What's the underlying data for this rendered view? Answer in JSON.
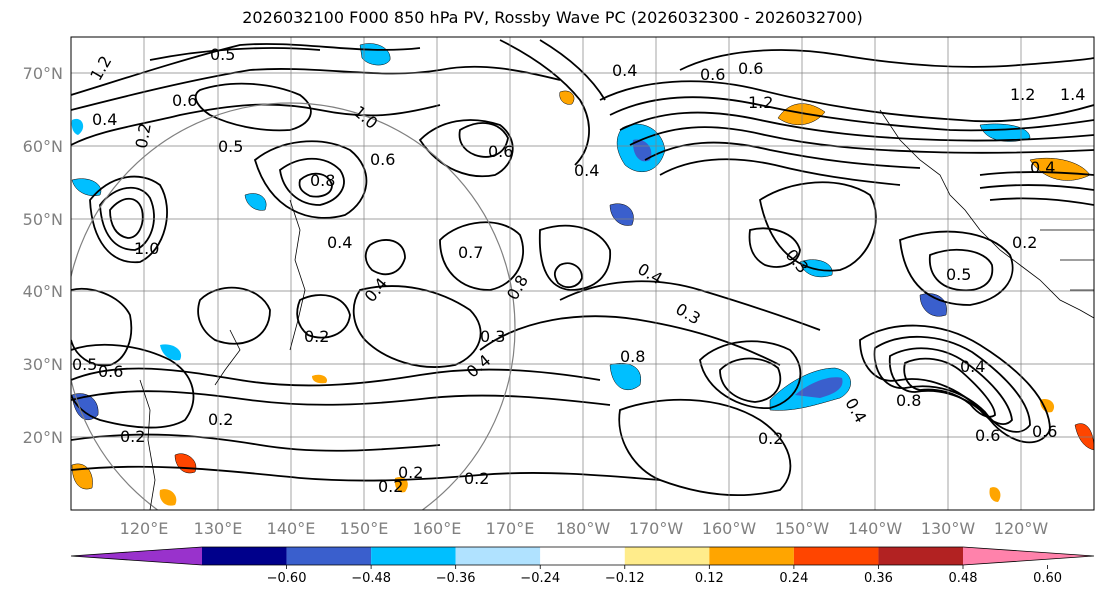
{
  "title": "2026032100 F000 850 hPa PV, Rossby Wave PC (2026032300 - 2026032700)",
  "lat_labels": [
    "70°N",
    "60°N",
    "50°N",
    "40°N",
    "30°N",
    "20°N"
  ],
  "lon_labels": [
    "120°E",
    "130°E",
    "140°E",
    "150°E",
    "160°E",
    "170°E",
    "180°W",
    "170°W",
    "160°W",
    "150°W",
    "140°W",
    "130°W",
    "120°W"
  ],
  "colorbar": {
    "ticks": [
      "−0.60",
      "−0.48",
      "−0.36",
      "−0.24",
      "−0.12",
      "0.12",
      "0.24",
      "0.36",
      "0.48",
      "0.60"
    ],
    "colors": [
      "#9932CC",
      "#00008B",
      "#3A5FCD",
      "#00BFFF",
      "#B0E2FF",
      "#FFFFFF",
      "#FFEC8B",
      "#FFA500",
      "#FF4500",
      "#B22222",
      "#FF82AB"
    ]
  },
  "contour_labels": {
    "c1": "0.5",
    "c2": "1.2",
    "c3": "0.4",
    "c4": "0.6",
    "c5": "0.6",
    "c6": "1.2",
    "c7": "1.2",
    "c8": "1.4",
    "c9": "0.6",
    "c10": "0.4",
    "c11": "1.0",
    "c12": "0.5",
    "c13": "0.6",
    "c14": "0.6",
    "c15": "0.4",
    "c16": "0.2",
    "c17": "0.8",
    "c18": "0.4",
    "c19": "0.7",
    "c20": "0.3",
    "c21": "0.8",
    "c22": "0.4",
    "c23": "0.4",
    "c24": "0.3",
    "c25": "0.2",
    "c26": "0.3",
    "c27": "0.4",
    "c28": "0.5",
    "c29": "0.4",
    "c30": "0.8",
    "c31": "0.4",
    "c32": "0.2",
    "c33": "0.6",
    "c34": "0.6",
    "c35": "0.2",
    "c36": "0.2",
    "c37": "0.2",
    "c38": "0.2",
    "c39": "0.2",
    "c40": "0.5",
    "c41": "0.8",
    "c42": "0.6",
    "c43": "0.4",
    "c44": "1.0",
    "c45": "0.2"
  },
  "legend_colors": {
    "grid": "#808080",
    "contour": "#000000",
    "frame": "#000000"
  }
}
